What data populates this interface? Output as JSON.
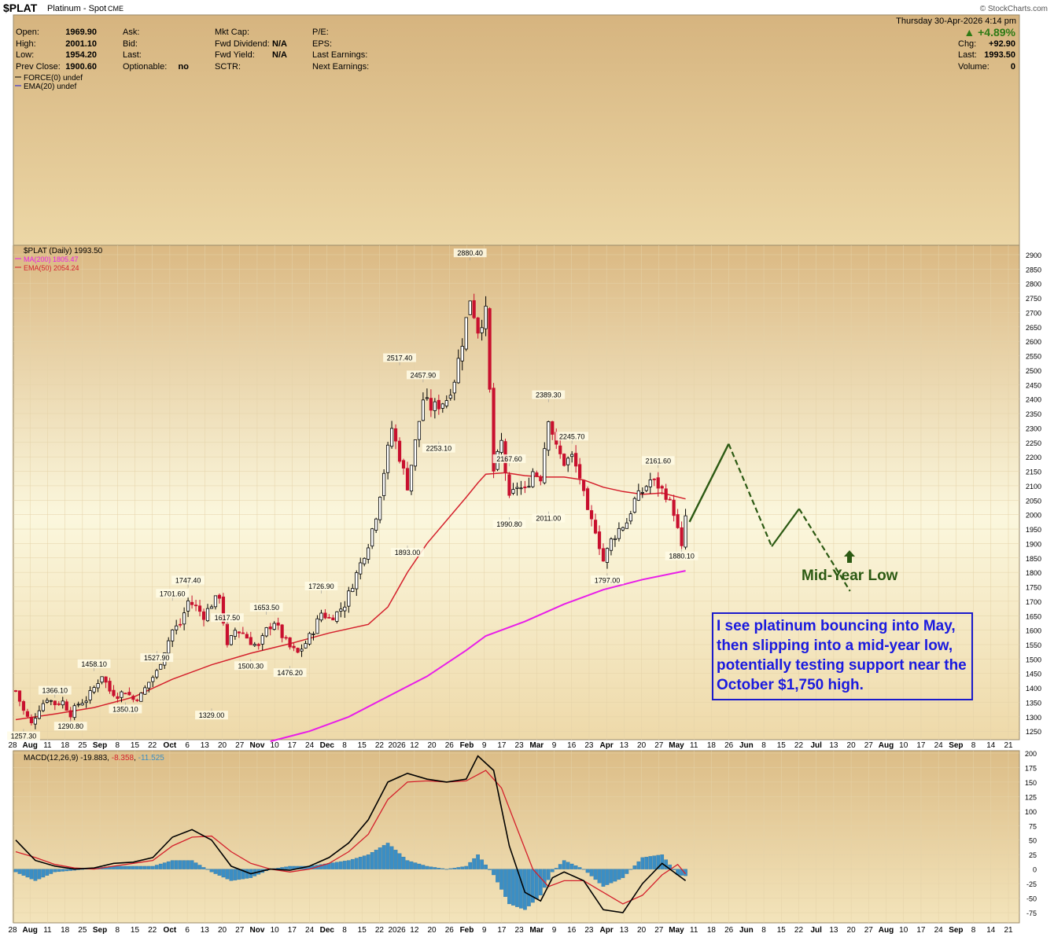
{
  "header": {
    "symbol": "$PLAT",
    "name": "Platinum - Spot",
    "exchange": "CME",
    "credit": "© StockCharts.com",
    "date": "Thursday  30-Apr-2026  4:14 pm",
    "fields_left": [
      [
        "Open:",
        "1969.90"
      ],
      [
        "High:",
        "2001.10"
      ],
      [
        "Low:",
        "1954.20"
      ],
      [
        "Prev Close:",
        "1900.60"
      ]
    ],
    "fields_mid": [
      [
        "Ask:",
        ""
      ],
      [
        "Bid:",
        ""
      ],
      [
        "Last:",
        ""
      ],
      [
        "Optionable:",
        "no"
      ]
    ],
    "fields_mid2": [
      [
        "Mkt Cap:",
        ""
      ],
      [
        "Fwd Dividend:",
        "N/A"
      ],
      [
        "Fwd Yield:",
        "N/A"
      ],
      [
        "SCTR:",
        ""
      ]
    ],
    "fields_mid3": [
      "P/E:",
      "EPS:",
      "Last Earnings:",
      "Next Earnings:"
    ],
    "change_pct": "▲ +4.89%",
    "fields_right": [
      [
        "Chg:",
        "+92.90"
      ],
      [
        "Last:",
        "1993.50"
      ],
      [
        "Volume:",
        "0"
      ]
    ]
  },
  "panels": {
    "force_legend": "FORCE(0) undef",
    "force_ema": "EMA(20) undef",
    "price_legend": "$PLAT (Daily) 1993.50",
    "ma200_legend": "MA(200) 1805.47",
    "ema50_legend": "EMA(50) 2054.24",
    "macd_legend": [
      "MACD(12,26,9) ",
      "-19.883",
      ", ",
      "-8.358",
      ", ",
      "-11.525"
    ]
  },
  "colors": {
    "panel_bg_top": "#d8b47d",
    "panel_bg_bottom": "#fbf6d9",
    "ma200": "#e81ee8",
    "ema50": "#d4202c",
    "down_candle": "#c8102e",
    "projection": "#2c5a13",
    "macd_hist": "#3b8ec4",
    "callout": "#1a1adf"
  },
  "chart_data": [
    {
      "type": "line",
      "title": "$PLAT (Daily) 1993.50",
      "x_tick_labels": [
        "28",
        "Aug",
        "11",
        "18",
        "25",
        "Sep",
        "8",
        "15",
        "22",
        "Oct",
        "6",
        "13",
        "20",
        "27",
        "Nov",
        "10",
        "17",
        "24",
        "Dec",
        "8",
        "15",
        "22",
        "2026",
        "12",
        "20",
        "26",
        "Feb",
        "9",
        "17",
        "23",
        "Mar",
        "9",
        "16",
        "23",
        "Apr",
        "13",
        "20",
        "27",
        "May",
        "11",
        "18",
        "26",
        "Jun",
        "8",
        "15",
        "22",
        "Jul",
        "13",
        "20",
        "27",
        "Aug",
        "10",
        "17",
        "24",
        "Sep",
        "8",
        "14",
        "21"
      ],
      "y_ticks": [
        1250,
        1300,
        1350,
        1400,
        1450,
        1500,
        1550,
        1600,
        1650,
        1700,
        1750,
        1800,
        1850,
        1900,
        1950,
        2000,
        2050,
        2100,
        2150,
        2200,
        2250,
        2300,
        2350,
        2400,
        2450,
        2500,
        2550,
        2600,
        2650,
        2700,
        2750,
        2800,
        2850,
        2900
      ],
      "ylim": [
        1215,
        2925
      ],
      "price_path": [
        [
          0,
          1390
        ],
        [
          2,
          1320
        ],
        [
          4,
          1275
        ],
        [
          6,
          1330
        ],
        [
          8,
          1365
        ],
        [
          10,
          1345
        ],
        [
          12,
          1352
        ],
        [
          14,
          1310
        ],
        [
          16,
          1345
        ],
        [
          18,
          1360
        ],
        [
          20,
          1400
        ],
        [
          22,
          1445
        ],
        [
          24,
          1390
        ],
        [
          26,
          1375
        ],
        [
          28,
          1390
        ],
        [
          30,
          1360
        ],
        [
          32,
          1375
        ],
        [
          34,
          1420
        ],
        [
          36,
          1455
        ],
        [
          38,
          1530
        ],
        [
          40,
          1600
        ],
        [
          42,
          1620
        ],
        [
          44,
          1700
        ],
        [
          46,
          1680
        ],
        [
          48,
          1650
        ],
        [
          50,
          1690
        ],
        [
          52,
          1720
        ],
        [
          54,
          1540
        ],
        [
          56,
          1600
        ],
        [
          58,
          1590
        ],
        [
          60,
          1560
        ],
        [
          62,
          1540
        ],
        [
          64,
          1600
        ],
        [
          66,
          1630
        ],
        [
          68,
          1580
        ],
        [
          70,
          1540
        ],
        [
          72,
          1520
        ],
        [
          74,
          1555
        ],
        [
          76,
          1600
        ],
        [
          78,
          1660
        ],
        [
          80,
          1640
        ],
        [
          82,
          1660
        ],
        [
          84,
          1690
        ],
        [
          86,
          1760
        ],
        [
          88,
          1830
        ],
        [
          90,
          1900
        ],
        [
          92,
          2000
        ],
        [
          94,
          2150
        ],
        [
          96,
          2300
        ],
        [
          98,
          2200
        ],
        [
          100,
          2100
        ],
        [
          102,
          2250
        ],
        [
          104,
          2400
        ],
        [
          106,
          2370
        ],
        [
          108,
          2380
        ],
        [
          110,
          2400
        ],
        [
          112,
          2470
        ],
        [
          114,
          2600
        ],
        [
          116,
          2750
        ],
        [
          118,
          2640
        ],
        [
          120,
          2700
        ],
        [
          122,
          2150
        ],
        [
          124,
          2250
        ],
        [
          126,
          2050
        ],
        [
          128,
          2100
        ],
        [
          130,
          2080
        ],
        [
          132,
          2150
        ],
        [
          134,
          2130
        ],
        [
          136,
          2340
        ],
        [
          138,
          2230
        ],
        [
          140,
          2180
        ],
        [
          142,
          2200
        ],
        [
          144,
          2130
        ],
        [
          146,
          2000
        ],
        [
          148,
          1950
        ],
        [
          150,
          1840
        ],
        [
          152,
          1910
        ],
        [
          154,
          1950
        ],
        [
          156,
          1975
        ],
        [
          158,
          2050
        ],
        [
          160,
          2080
        ],
        [
          162,
          2120
        ],
        [
          164,
          2100
        ],
        [
          166,
          2070
        ],
        [
          168,
          2010
        ],
        [
          170,
          1880
        ],
        [
          171,
          1993.5
        ]
      ],
      "candle_price_range": {
        "min_low": 1257.3,
        "max_high": 2880.4
      },
      "last_close": 1993.5,
      "price_labels": [
        {
          "d": 2,
          "v": 1257.3,
          "t": "1257.30",
          "pos": "below"
        },
        {
          "d": 10,
          "v": 1366.1,
          "t": "1366.10",
          "pos": "above"
        },
        {
          "d": 14,
          "v": 1290.8,
          "t": "1290.80",
          "pos": "below"
        },
        {
          "d": 20,
          "v": 1458.1,
          "t": "1458.10",
          "pos": "above"
        },
        {
          "d": 28,
          "v": 1350.1,
          "t": "1350.10",
          "pos": "below"
        },
        {
          "d": 36,
          "v": 1527.9,
          "t": "1527.90",
          "pos": "below"
        },
        {
          "d": 40,
          "v": 1701.6,
          "t": "1701.60",
          "pos": "above"
        },
        {
          "d": 44,
          "v": 1747.4,
          "t": "1747.40",
          "pos": "above"
        },
        {
          "d": 50,
          "v": 1329.0,
          "t": "1329.00",
          "pos": "below"
        },
        {
          "d": 54,
          "v": 1617.5,
          "t": "1617.50",
          "pos": "above"
        },
        {
          "d": 60,
          "v": 1500.3,
          "t": "1500.30",
          "pos": "below"
        },
        {
          "d": 64,
          "v": 1653.5,
          "t": "1653.50",
          "pos": "above"
        },
        {
          "d": 70,
          "v": 1476.2,
          "t": "1476.20",
          "pos": "below"
        },
        {
          "d": 78,
          "v": 1726.9,
          "t": "1726.90",
          "pos": "above"
        },
        {
          "d": 98,
          "v": 2517.4,
          "t": "2517.40",
          "pos": "above"
        },
        {
          "d": 100,
          "v": 1893.0,
          "t": "1893.00",
          "pos": "below"
        },
        {
          "d": 104,
          "v": 2457.9,
          "t": "2457.90",
          "pos": "above"
        },
        {
          "d": 108,
          "v": 2253.1,
          "t": "2253.10",
          "pos": "below"
        },
        {
          "d": 116,
          "v": 2880.4,
          "t": "2880.40",
          "pos": "above"
        },
        {
          "d": 126,
          "v": 1990.8,
          "t": "1990.80",
          "pos": "below"
        },
        {
          "d": 126,
          "v": 2167.6,
          "t": "2167.60",
          "pos": "above"
        },
        {
          "d": 136,
          "v": 2389.3,
          "t": "2389.30",
          "pos": "above"
        },
        {
          "d": 136,
          "v": 2011.0,
          "t": "2011.00",
          "pos": "below"
        },
        {
          "d": 142,
          "v": 2245.7,
          "t": "2245.70",
          "pos": "above"
        },
        {
          "d": 151,
          "v": 1797.0,
          "t": "1797.00",
          "pos": "below"
        },
        {
          "d": 164,
          "v": 2161.6,
          "t": "2161.60",
          "pos": "above"
        },
        {
          "d": 170,
          "v": 1880.1,
          "t": "1880.10",
          "pos": "below"
        }
      ],
      "ema50_path": [
        [
          0,
          1290
        ],
        [
          10,
          1310
        ],
        [
          20,
          1332
        ],
        [
          30,
          1368
        ],
        [
          40,
          1430
        ],
        [
          50,
          1480
        ],
        [
          60,
          1520
        ],
        [
          70,
          1553
        ],
        [
          80,
          1590
        ],
        [
          90,
          1620
        ],
        [
          95,
          1680
        ],
        [
          100,
          1800
        ],
        [
          105,
          1900
        ],
        [
          110,
          1980
        ],
        [
          115,
          2060
        ],
        [
          118,
          2110
        ],
        [
          120,
          2140
        ],
        [
          125,
          2145
        ],
        [
          130,
          2135
        ],
        [
          135,
          2130
        ],
        [
          140,
          2130
        ],
        [
          145,
          2120
        ],
        [
          150,
          2095
        ],
        [
          155,
          2080
        ],
        [
          160,
          2070
        ],
        [
          165,
          2075
        ],
        [
          171,
          2054.24
        ]
      ],
      "ma200_path": [
        [
          65,
          1215
        ],
        [
          75,
          1250
        ],
        [
          85,
          1300
        ],
        [
          95,
          1370
        ],
        [
          105,
          1440
        ],
        [
          115,
          1530
        ],
        [
          120,
          1580
        ],
        [
          130,
          1630
        ],
        [
          140,
          1690
        ],
        [
          150,
          1740
        ],
        [
          160,
          1775
        ],
        [
          171,
          1805.47
        ]
      ],
      "projection_path": [
        [
          172,
          1975
        ],
        [
          182,
          2245
        ],
        [
          193,
          1890
        ],
        [
          200,
          2020
        ],
        [
          213,
          1735
        ]
      ],
      "projection_label": "Mid-Year Low",
      "callout_text": [
        "I see platinum bouncing into May,",
        "then slipping into a mid-year low,",
        "potentially testing support near the",
        "October $1,750 high."
      ]
    },
    {
      "type": "line",
      "title": "MACD(12,26,9) -19.883, -8.358, -11.525",
      "y_ticks": [
        -75,
        -50,
        -25,
        0,
        25,
        50,
        75,
        100,
        125,
        150,
        175,
        200
      ],
      "ylim": [
        -90,
        205
      ],
      "macd_path": [
        [
          0,
          50
        ],
        [
          5,
          15
        ],
        [
          10,
          5
        ],
        [
          15,
          0
        ],
        [
          20,
          2
        ],
        [
          25,
          10
        ],
        [
          30,
          12
        ],
        [
          35,
          20
        ],
        [
          40,
          55
        ],
        [
          45,
          68
        ],
        [
          50,
          50
        ],
        [
          55,
          5
        ],
        [
          60,
          -8
        ],
        [
          65,
          0
        ],
        [
          70,
          -2
        ],
        [
          75,
          5
        ],
        [
          80,
          20
        ],
        [
          85,
          45
        ],
        [
          90,
          85
        ],
        [
          95,
          150
        ],
        [
          100,
          165
        ],
        [
          105,
          155
        ],
        [
          110,
          150
        ],
        [
          115,
          155
        ],
        [
          118,
          195
        ],
        [
          122,
          170
        ],
        [
          126,
          40
        ],
        [
          130,
          -40
        ],
        [
          134,
          -55
        ],
        [
          137,
          -15
        ],
        [
          140,
          -5
        ],
        [
          145,
          -20
        ],
        [
          150,
          -70
        ],
        [
          155,
          -75
        ],
        [
          160,
          -25
        ],
        [
          165,
          10
        ],
        [
          169,
          -10
        ],
        [
          171,
          -19.883
        ]
      ],
      "signal_path": [
        [
          0,
          30
        ],
        [
          5,
          20
        ],
        [
          10,
          8
        ],
        [
          15,
          2
        ],
        [
          20,
          0
        ],
        [
          25,
          5
        ],
        [
          30,
          10
        ],
        [
          35,
          15
        ],
        [
          40,
          40
        ],
        [
          45,
          55
        ],
        [
          50,
          57
        ],
        [
          55,
          30
        ],
        [
          60,
          10
        ],
        [
          65,
          0
        ],
        [
          70,
          -5
        ],
        [
          75,
          0
        ],
        [
          80,
          10
        ],
        [
          85,
          30
        ],
        [
          90,
          60
        ],
        [
          95,
          120
        ],
        [
          100,
          150
        ],
        [
          105,
          152
        ],
        [
          110,
          150
        ],
        [
          115,
          152
        ],
        [
          120,
          170
        ],
        [
          124,
          140
        ],
        [
          128,
          70
        ],
        [
          132,
          0
        ],
        [
          136,
          -30
        ],
        [
          140,
          -20
        ],
        [
          145,
          -20
        ],
        [
          150,
          -40
        ],
        [
          155,
          -60
        ],
        [
          160,
          -45
        ],
        [
          165,
          -10
        ],
        [
          169,
          8
        ],
        [
          171,
          -8.358
        ]
      ],
      "histogram_path": [
        [
          0,
          -5
        ],
        [
          5,
          -20
        ],
        [
          10,
          -5
        ],
        [
          15,
          -2
        ],
        [
          20,
          2
        ],
        [
          25,
          5
        ],
        [
          30,
          5
        ],
        [
          35,
          5
        ],
        [
          40,
          15
        ],
        [
          45,
          15
        ],
        [
          50,
          -5
        ],
        [
          55,
          -20
        ],
        [
          60,
          -15
        ],
        [
          65,
          0
        ],
        [
          70,
          5
        ],
        [
          75,
          5
        ],
        [
          80,
          10
        ],
        [
          85,
          15
        ],
        [
          90,
          25
        ],
        [
          95,
          45
        ],
        [
          100,
          15
        ],
        [
          105,
          5
        ],
        [
          110,
          0
        ],
        [
          115,
          5
        ],
        [
          118,
          25
        ],
        [
          122,
          -10
        ],
        [
          126,
          -60
        ],
        [
          130,
          -70
        ],
        [
          134,
          -45
        ],
        [
          137,
          -5
        ],
        [
          140,
          15
        ],
        [
          145,
          0
        ],
        [
          150,
          -30
        ],
        [
          155,
          -15
        ],
        [
          160,
          20
        ],
        [
          165,
          25
        ],
        [
          169,
          -10
        ],
        [
          171,
          -11.525
        ]
      ]
    }
  ]
}
